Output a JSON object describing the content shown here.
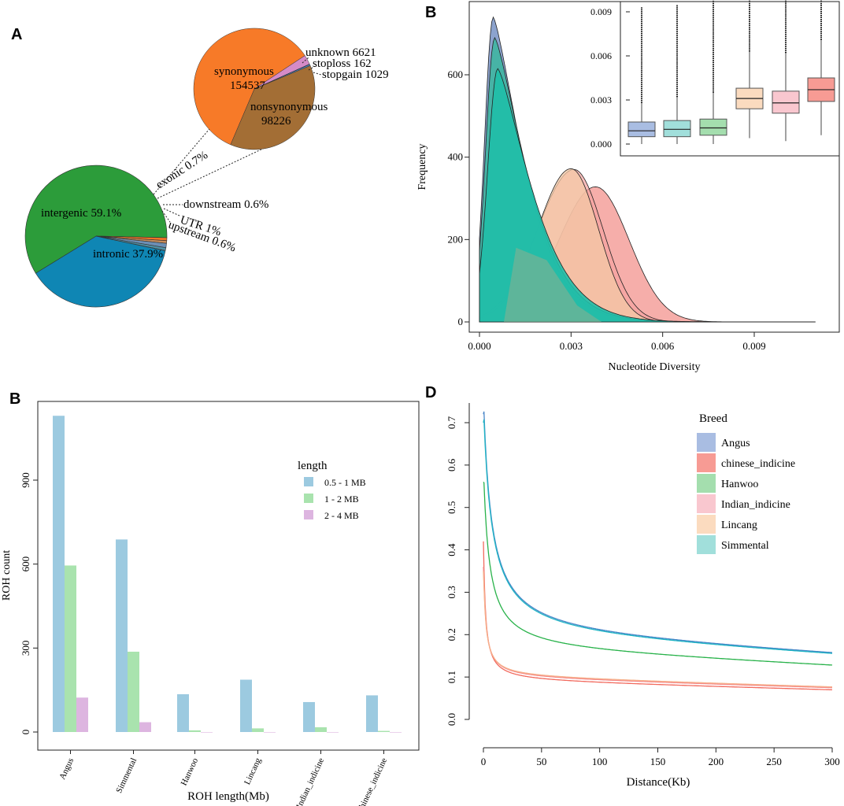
{
  "colors": {
    "intergenic": "#2c9c3a",
    "intronic": "#0f86b4",
    "exonic": "#f07226",
    "synonymous": "#f77a28",
    "nonsynonymous": "#a36e35",
    "angus": "#a9bde2",
    "chinese_indicine": "#f79b94",
    "hanwoo": "#a4deae",
    "indian_indicine": "#f9c7cf",
    "lincang": "#fbdbbf",
    "simmental": "#a1dfdb",
    "teal_fill": "#1fbea8",
    "olive_fill": "#8fae8e",
    "bar_blue": "#9ccae0",
    "bar_green": "#a9e3ae",
    "bar_pink": "#ddb5e0"
  },
  "chart_data": [
    {
      "panel": "A",
      "type": "pie",
      "title": "",
      "main": [
        {
          "name": "intergenic",
          "label": "intergenic 59.1%",
          "value": 59.1
        },
        {
          "name": "intronic",
          "label": "intronic 37.9%",
          "value": 37.9
        },
        {
          "name": "upstream",
          "label": "upstream 0.6%",
          "value": 0.6
        },
        {
          "name": "UTR",
          "label": "UTR 1%",
          "value": 1.0
        },
        {
          "name": "downstream",
          "label": "downstream 0.6%",
          "value": 0.6
        },
        {
          "name": "exonic",
          "label": "exonic 0.7%",
          "value": 0.7
        }
      ],
      "exonic_breakdown": [
        {
          "name": "synonymous",
          "label": "synonymous",
          "value": 154537
        },
        {
          "name": "nonsynonymous",
          "label": "nonsynonymous",
          "value": 98226
        },
        {
          "name": "stopgain",
          "label": "stopgain 1029",
          "value": 1029
        },
        {
          "name": "stoploss",
          "label": "stoploss 162",
          "value": 162
        },
        {
          "name": "unknown",
          "label": "unknown 6621",
          "value": 6621
        }
      ],
      "value_labels": {
        "synonymous": "154537",
        "nonsynonymous": "98226"
      }
    },
    {
      "panel": "B",
      "type": "area",
      "xlabel": "Nucleotide Diversity",
      "ylabel": "Frequency",
      "xlim": [
        -0.0008,
        0.0115
      ],
      "ylim": [
        -20,
        760
      ],
      "xticks": [
        "0.000",
        "0.003",
        "0.006",
        "0.009"
      ],
      "xtick_values": [
        0.0,
        0.003,
        0.006,
        0.009
      ],
      "yticks": [
        "0",
        "200",
        "400",
        "600"
      ],
      "ytick_values": [
        0,
        200,
        400,
        600
      ],
      "series": [
        {
          "name": "Angus",
          "mode": 0.00045,
          "peak": 740,
          "sd_left": 0.00028,
          "sd_right": 0.0009
        },
        {
          "name": "Simmental",
          "mode": 0.0005,
          "peak": 690,
          "sd_left": 0.0003,
          "sd_right": 0.00095
        },
        {
          "name": "Hanwoo",
          "mode": 0.0006,
          "peak": 615,
          "sd_left": 0.00033,
          "sd_right": 0.001
        },
        {
          "name": "Lincang",
          "mode": 0.003,
          "peak": 372,
          "sd_left": 0.0011,
          "sd_right": 0.0009
        },
        {
          "name": "Indian_indicine",
          "mode": 0.0031,
          "peak": 370,
          "sd_left": 0.0012,
          "sd_right": 0.00095
        },
        {
          "name": "chinese_indicine",
          "mode": 0.0038,
          "peak": 328,
          "sd_left": 0.0012,
          "sd_right": 0.0011
        }
      ],
      "inset": {
        "type": "box",
        "yticks": [
          "0.000",
          "0.003",
          "0.006",
          "0.009"
        ],
        "ytick_values": [
          0.0,
          0.003,
          0.006,
          0.009
        ],
        "ylim": [
          -0.0004,
          0.0113
        ],
        "boxes": [
          {
            "name": "Angus",
            "q1": 0.0005,
            "median": 0.0009,
            "q3": 0.0015,
            "whisker_low": 0.0,
            "whisker_high": 0.0028,
            "outlier_max": 0.0093
          },
          {
            "name": "Simmental",
            "q1": 0.0005,
            "median": 0.001,
            "q3": 0.0016,
            "whisker_low": 0.0,
            "whisker_high": 0.0032,
            "outlier_max": 0.0095
          },
          {
            "name": "Hanwoo",
            "q1": 0.0006,
            "median": 0.0011,
            "q3": 0.0017,
            "whisker_low": 0.0,
            "whisker_high": 0.0035,
            "outlier_max": 0.0101
          },
          {
            "name": "Lincang",
            "q1": 0.0024,
            "median": 0.0031,
            "q3": 0.0038,
            "whisker_low": 0.0004,
            "whisker_high": 0.0063,
            "outlier_max": 0.0111
          },
          {
            "name": "Indian_indicine",
            "q1": 0.0021,
            "median": 0.0028,
            "q3": 0.0036,
            "whisker_low": 0.0002,
            "whisker_high": 0.0062,
            "outlier_max": 0.011
          },
          {
            "name": "chinese_indicine",
            "q1": 0.0029,
            "median": 0.0037,
            "q3": 0.0045,
            "whisker_low": 0.0006,
            "whisker_high": 0.0071,
            "outlier_max": 0.0113
          }
        ]
      }
    },
    {
      "panel": "B",
      "type": "bar",
      "xlabel": "ROH length(Mb)",
      "ylabel": "ROH count",
      "ylim": [
        -30,
        1180
      ],
      "yticks": [
        "0",
        "300",
        "600",
        "900"
      ],
      "ytick_values": [
        0,
        300,
        600,
        900
      ],
      "categories": [
        "Angus",
        "Simmental",
        "Hanwoo",
        "Lincang",
        "Indian_indicine",
        "chinese_indicine"
      ],
      "legend_title": "length",
      "series": [
        {
          "name": "0.5 - 1 MB",
          "values": [
            1130,
            688,
            135,
            187,
            107,
            131
          ]
        },
        {
          "name": "1 - 2 MB",
          "values": [
            595,
            287,
            6,
            13,
            17,
            4
          ]
        },
        {
          "name": "2 - 4 MB",
          "values": [
            123,
            35,
            0,
            0,
            0,
            0
          ]
        }
      ]
    },
    {
      "panel": "D",
      "type": "line",
      "xlabel": "Distance(Kb)",
      "ylabel": "",
      "xlim": [
        -3,
        300
      ],
      "ylim": [
        -0.005,
        0.72
      ],
      "xticks": [
        "0",
        "50",
        "100",
        "150",
        "200",
        "250",
        "300"
      ],
      "xtick_values": [
        0,
        50,
        100,
        150,
        200,
        250,
        300
      ],
      "yticks": [
        "0.0",
        "0.1",
        "0.2",
        "0.3",
        "0.4",
        "0.5",
        "0.6",
        "0.7"
      ],
      "ytick_values": [
        0.0,
        0.1,
        0.2,
        0.3,
        0.4,
        0.5,
        0.6,
        0.7
      ],
      "legend_title": "Breed",
      "series": [
        {
          "name": "Angus",
          "color_line": "#4a86c8",
          "start": 0.72,
          "end": 0.145,
          "k": 6.8
        },
        {
          "name": "chinese_indicine",
          "color_line": "#f26a5e",
          "start": 0.42,
          "end": 0.068,
          "k": 1.6
        },
        {
          "name": "Hanwoo",
          "color_line": "#28b24a",
          "start": 0.56,
          "end": 0.121,
          "k": 5.0
        },
        {
          "name": "Indian_indicine",
          "color_line": "#f58a8a",
          "start": 0.36,
          "end": 0.073,
          "k": 1.9
        },
        {
          "name": "Lincang",
          "color_line": "#f6b08a",
          "start": 0.35,
          "end": 0.075,
          "k": 1.9
        },
        {
          "name": "Simmental",
          "color_line": "#1fb5c4",
          "start": 0.7,
          "end": 0.143,
          "k": 7.0
        }
      ]
    }
  ],
  "panels": {
    "a": {
      "letter": "A"
    },
    "b": {
      "letter": "B"
    },
    "c": {
      "letter": "B"
    },
    "d": {
      "letter": "D"
    }
  }
}
